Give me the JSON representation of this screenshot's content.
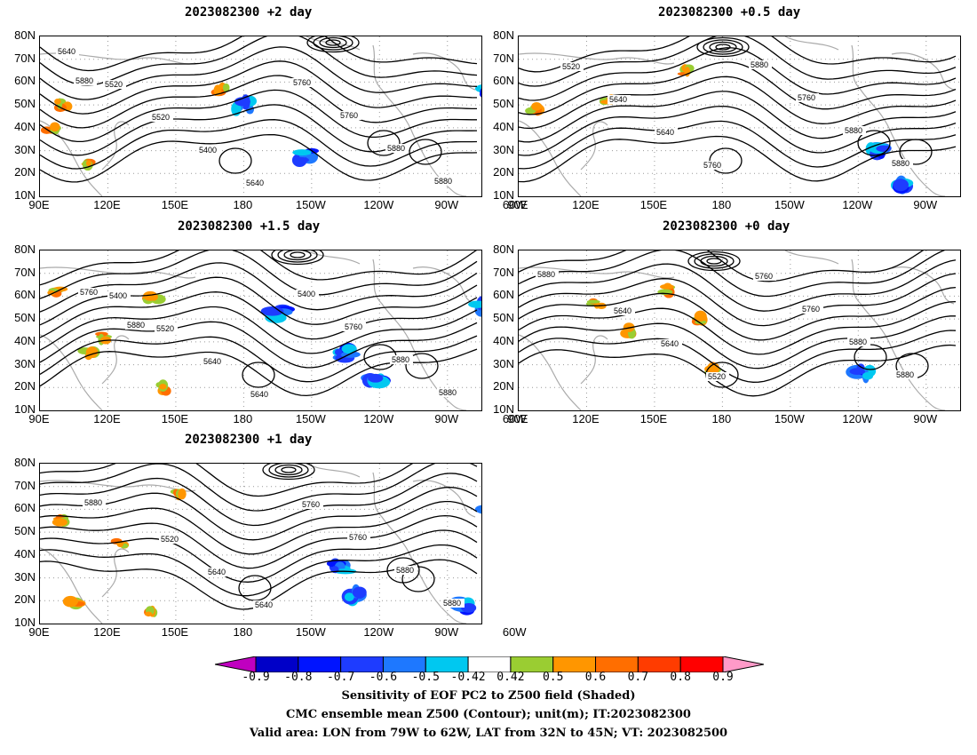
{
  "panels": [
    {
      "title": "2023082300 +2 day",
      "contour_labels": [
        "5640",
        "5520",
        "5520",
        "5400",
        "5640",
        "5760",
        "5760",
        "5880",
        "5880",
        "5880"
      ],
      "blue_blobs": [
        [
          180,
          50
        ],
        [
          72,
          55
        ],
        [
          64,
          45
        ],
        [
          152,
          28
        ]
      ],
      "green_blobs": [
        [
          100,
          50
        ],
        [
          95,
          40
        ],
        [
          110,
          25
        ],
        [
          170,
          57
        ]
      ]
    },
    {
      "title": "2023082300 +0.5 day",
      "contour_labels": [
        "5520",
        "5640",
        "5640",
        "5760",
        "5880",
        "5760",
        "5880",
        "5880"
      ],
      "blue_blobs": [
        [
          64,
          62
        ],
        [
          60,
          40
        ],
        [
          112,
          30
        ],
        [
          100,
          15
        ]
      ],
      "green_blobs": [
        [
          165,
          65
        ],
        [
          97,
          48
        ],
        [
          130,
          52
        ]
      ]
    },
    {
      "title": "2023082300 +1.5 day",
      "contour_labels": [
        "5400",
        "5520",
        "5640",
        "5640",
        "5400",
        "5760",
        "5880",
        "5880",
        "5760",
        "5880"
      ],
      "blue_blobs": [
        [
          74,
          55
        ],
        [
          58,
          45
        ],
        [
          135,
          35
        ],
        [
          122,
          22
        ],
        [
          165,
          52
        ]
      ],
      "green_blobs": [
        [
          97,
          62
        ],
        [
          117,
          42
        ],
        [
          140,
          60
        ],
        [
          112,
          35
        ],
        [
          145,
          20
        ]
      ]
    },
    {
      "title": "2023082300 +0 day",
      "contour_labels": [
        "5640",
        "5640",
        "5520",
        "5760",
        "5760",
        "5880",
        "5880",
        "5880"
      ],
      "blue_blobs": [
        [
          58,
          62
        ],
        [
          64,
          42
        ],
        [
          118,
          27
        ]
      ],
      "green_blobs": [
        [
          155,
          63
        ],
        [
          170,
          50
        ],
        [
          140,
          45
        ],
        [
          175,
          28
        ],
        [
          125,
          57
        ]
      ]
    },
    {
      "title": "2023082300 +1 day",
      "contour_labels": [
        "5520",
        "5640",
        "5640",
        "5760",
        "5760",
        "5880",
        "5880",
        "5880"
      ],
      "blue_blobs": [
        [
          70,
          62
        ],
        [
          60,
          42
        ],
        [
          138,
          34
        ],
        [
          132,
          22
        ],
        [
          83,
          17
        ]
      ],
      "green_blobs": [
        [
          125,
          45
        ],
        [
          100,
          55
        ],
        [
          105,
          20
        ],
        [
          140,
          15
        ],
        [
          152,
          67
        ]
      ]
    }
  ],
  "axes": {
    "lat_labels": [
      "80N",
      "70N",
      "60N",
      "50N",
      "40N",
      "30N",
      "20N",
      "10N"
    ],
    "lon_labels": [
      "90E",
      "120E",
      "150E",
      "180",
      "150W",
      "120W",
      "90W",
      "60W"
    ]
  },
  "colorbar": {
    "colors": [
      "#c000c0",
      "#0000c8",
      "#0014ff",
      "#1e3cff",
      "#1e78ff",
      "#00c8f0",
      "#ffffff",
      "#9acd32",
      "#ff9600",
      "#ff6e00",
      "#ff3c00",
      "#ff0000",
      "#ff9ac8"
    ],
    "labels": [
      "-0.9",
      "-0.8",
      "-0.7",
      "-0.6",
      "-0.5",
      "-0.42",
      "0.42",
      "0.5",
      "0.6",
      "0.7",
      "0.8",
      "0.9"
    ]
  },
  "caption": {
    "line1": "Sensitivity of EOF PC2 to Z500 field (Shaded)",
    "line2": "CMC ensemble mean Z500 (Contour); unit(m); IT:2023082300",
    "line3": "Valid area: LON from 79W to 62W, LAT from 32N to 45N; VT: 2023082500"
  }
}
